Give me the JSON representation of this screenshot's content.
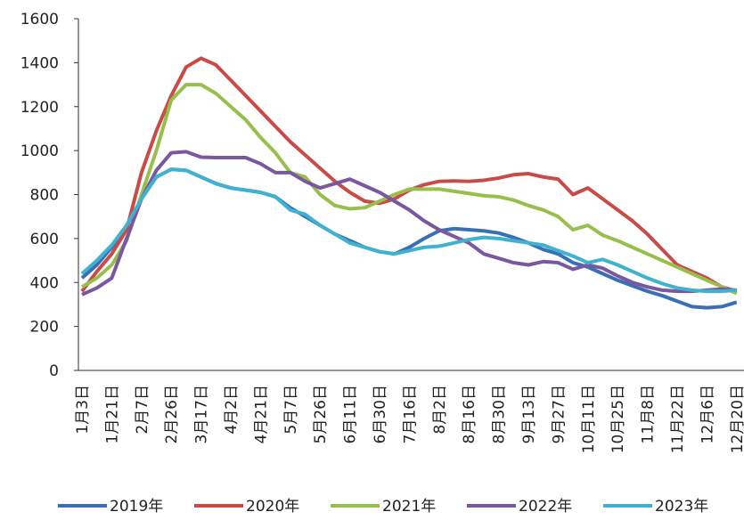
{
  "chart_data": {
    "type": "line",
    "categories": [
      "1月3日",
      null,
      "1月21日",
      null,
      "2月7日",
      null,
      "2月26日",
      null,
      "3月17日",
      null,
      "4月2日",
      null,
      "4月21日",
      null,
      "5月7日",
      null,
      "5月26日",
      null,
      "6月11日",
      null,
      "6月30日",
      null,
      "7月16日",
      null,
      "8月2日",
      null,
      "8月16日",
      null,
      "8月30日",
      null,
      "9月13日",
      null,
      "9月27日",
      null,
      "10月11日",
      null,
      "10月25日",
      null,
      "11月8日",
      null,
      "11月22日",
      null,
      "12月6日",
      null,
      "12月20日"
    ],
    "ylim": [
      0,
      1600
    ],
    "yticks": [
      0,
      200,
      400,
      600,
      800,
      1000,
      1200,
      1400,
      1600
    ],
    "grid": false,
    "legend": "bottom",
    "series": [
      {
        "name": "2019年",
        "color": "#3a6fb5",
        "values": [
          420,
          480,
          560,
          660,
          780,
          880,
          915,
          910,
          880,
          850,
          830,
          820,
          810,
          790,
          740,
          700,
          660,
          620,
          590,
          560,
          540,
          530,
          560,
          600,
          635,
          645,
          640,
          635,
          625,
          605,
          580,
          550,
          530,
          490,
          470,
          440,
          410,
          385,
          360,
          340,
          315,
          290,
          285,
          290,
          310
        ]
      },
      {
        "name": "2020年",
        "color": "#c84b48",
        "values": [
          360,
          450,
          530,
          640,
          900,
          1090,
          1250,
          1380,
          1420,
          1390,
          1320,
          1250,
          1180,
          1110,
          1040,
          980,
          920,
          860,
          810,
          770,
          760,
          780,
          820,
          845,
          860,
          862,
          860,
          865,
          875,
          890,
          895,
          880,
          870,
          800,
          830,
          780,
          730,
          680,
          620,
          550,
          480,
          450,
          420,
          380,
          360
        ]
      },
      {
        "name": "2021年",
        "color": "#98bf4c",
        "values": [
          380,
          420,
          480,
          590,
          800,
          1000,
          1230,
          1300,
          1300,
          1260,
          1200,
          1140,
          1060,
          990,
          900,
          880,
          800,
          750,
          735,
          740,
          770,
          800,
          825,
          825,
          825,
          815,
          805,
          795,
          790,
          775,
          750,
          730,
          700,
          640,
          660,
          615,
          590,
          560,
          530,
          500,
          470,
          440,
          410,
          380,
          350
        ]
      },
      {
        "name": "2022年",
        "color": "#7a58a0",
        "values": [
          345,
          375,
          420,
          600,
          780,
          910,
          990,
          995,
          970,
          968,
          968,
          968,
          940,
          900,
          900,
          860,
          830,
          850,
          870,
          840,
          810,
          770,
          730,
          680,
          640,
          610,
          580,
          530,
          510,
          490,
          480,
          495,
          490,
          460,
          480,
          465,
          430,
          400,
          380,
          365,
          360,
          360,
          365,
          370,
          365
        ]
      },
      {
        "name": "2023年",
        "color": "#3fb2cf",
        "values": [
          440,
          500,
          570,
          660,
          780,
          880,
          915,
          910,
          880,
          850,
          830,
          820,
          810,
          790,
          730,
          710,
          660,
          620,
          580,
          560,
          540,
          530,
          545,
          560,
          565,
          580,
          595,
          605,
          600,
          590,
          580,
          570,
          545,
          520,
          490,
          505,
          480,
          450,
          420,
          395,
          375,
          365,
          360,
          360,
          365
        ]
      }
    ]
  }
}
